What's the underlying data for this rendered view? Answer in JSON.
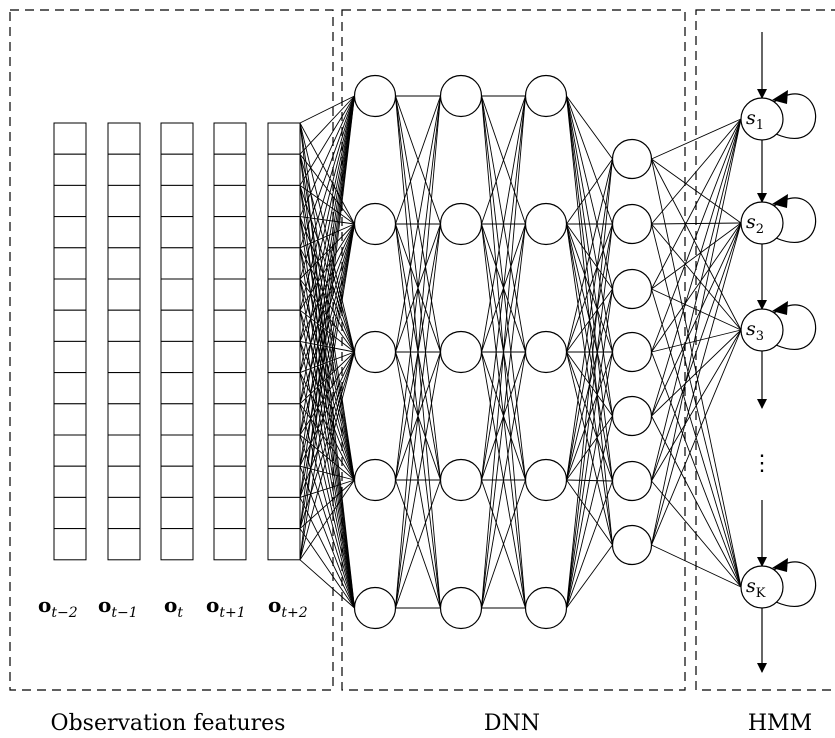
{
  "sections": [
    {
      "id": "observation",
      "title": "Observation features"
    },
    {
      "id": "dnn",
      "title": "DNN"
    },
    {
      "id": "hmm",
      "title": "HMM"
    }
  ],
  "observation_vectors": [
    {
      "base": "o",
      "sub": "t−2"
    },
    {
      "base": "o",
      "sub": "t−1"
    },
    {
      "base": "o",
      "sub": "t"
    },
    {
      "base": "o",
      "sub": "t+1"
    },
    {
      "base": "o",
      "sub": "t+2"
    }
  ],
  "cells_per_vector": 14,
  "dnn_layers": [
    {
      "name": "input-hidden-1",
      "nodes": 5
    },
    {
      "name": "hidden-2",
      "nodes": 5
    },
    {
      "name": "hidden-3",
      "nodes": 5
    },
    {
      "name": "output",
      "nodes": 7
    }
  ],
  "hmm_states": [
    {
      "base": "s",
      "sub": "1"
    },
    {
      "base": "s",
      "sub": "2"
    },
    {
      "base": "s",
      "sub": "3"
    },
    {
      "base": "s",
      "sub": "K"
    }
  ],
  "ellipsis": "⋮"
}
